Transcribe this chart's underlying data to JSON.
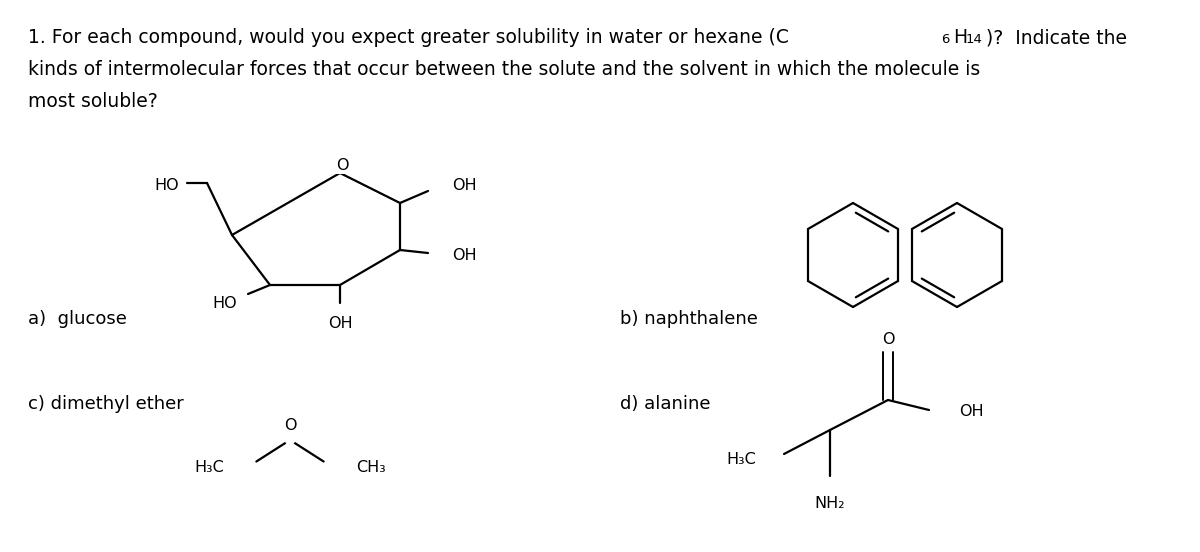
{
  "bg_color": "#ffffff",
  "text_color": "#000000",
  "font_size_title": 13.5,
  "font_size_label": 13,
  "font_size_chem": 11.5,
  "label_a": "a)  glucose",
  "label_b": "b) naphthalene",
  "label_c": "c) dimethyl ether",
  "label_d": "d) alanine"
}
